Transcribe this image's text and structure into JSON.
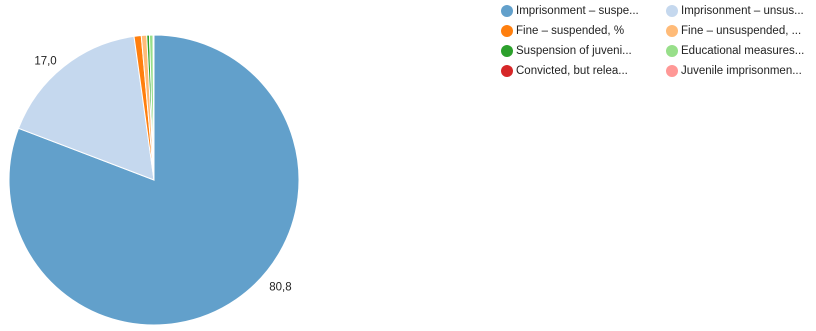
{
  "chart_data": {
    "type": "pie",
    "series": [
      {
        "name": "Imprisonment – suspe...",
        "value": 80.8,
        "color": "#62a0cb",
        "label": "80,8"
      },
      {
        "name": "Imprisonment – unsus...",
        "value": 17.0,
        "color": "#c5d8ee",
        "label": "17,0"
      },
      {
        "name": "Fine – suspended, %",
        "value": 0.8,
        "color": "#ff7f0e",
        "label": ""
      },
      {
        "name": "Fine – unsuspended, ...",
        "value": 0.6,
        "color": "#ffbb78",
        "label": ""
      },
      {
        "name": "Suspension of juveni...",
        "value": 0.3,
        "color": "#2ca02c",
        "label": ""
      },
      {
        "name": "Educational measures...",
        "value": 0.4,
        "color": "#98df8a",
        "label": ""
      },
      {
        "name": "Convicted, but relea...",
        "value": 0.05,
        "color": "#d62728",
        "label": ""
      },
      {
        "name": "Juvenile imprisonmen...",
        "value": 0.05,
        "color": "#ff9896",
        "label": ""
      }
    ],
    "legend_position": "top-right"
  }
}
